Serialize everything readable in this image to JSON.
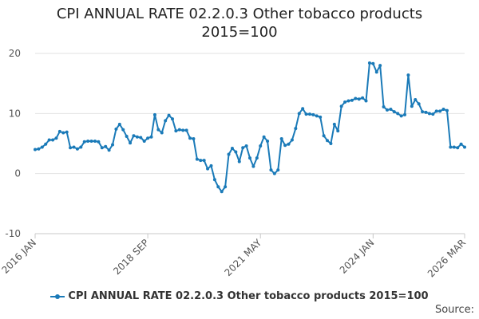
{
  "chart_data": {
    "type": "line",
    "title_line1": "CPI ANNUAL RATE 02.2.0.3 Other tobacco products",
    "title_line2": "2015=100",
    "xlabel": "",
    "ylabel": "",
    "ylim": [
      -10,
      20
    ],
    "yticks": [
      "20",
      "10",
      "0",
      "-10"
    ],
    "ytick_values": [
      20,
      10,
      0,
      -10
    ],
    "xtick_labels": [
      "2016 JAN",
      "2018 SEP",
      "2021 MAY",
      "2024 JAN",
      "2026 MAR"
    ],
    "xtick_indices": [
      0,
      32,
      64,
      96,
      122
    ],
    "grid": true,
    "legend_position": "bottom",
    "series": [
      {
        "name": "CPI ANNUAL RATE 02.2.0.3 Other tobacco products 2015=100",
        "color": "#1a7ab8",
        "values": [
          4.0,
          4.1,
          4.4,
          4.9,
          5.6,
          5.6,
          5.9,
          7.0,
          6.8,
          6.9,
          4.3,
          4.4,
          4.1,
          4.4,
          5.3,
          5.4,
          5.4,
          5.4,
          5.3,
          4.3,
          4.5,
          3.9,
          4.8,
          7.4,
          8.2,
          7.3,
          6.2,
          5.1,
          6.3,
          6.1,
          6.0,
          5.4,
          5.9,
          6.1,
          9.8,
          7.3,
          6.8,
          8.8,
          9.7,
          9.1,
          7.1,
          7.3,
          7.2,
          7.2,
          5.9,
          5.8,
          2.4,
          2.2,
          2.2,
          0.8,
          1.3,
          -1.0,
          -2.2,
          -3.0,
          -2.2,
          3.2,
          4.2,
          3.6,
          2.0,
          4.3,
          4.6,
          2.6,
          1.2,
          2.6,
          4.6,
          6.1,
          5.4,
          0.6,
          0.0,
          0.6,
          5.8,
          4.7,
          4.9,
          5.6,
          7.5,
          10.0,
          10.8,
          9.9,
          9.9,
          9.8,
          9.6,
          9.4,
          6.3,
          5.5,
          5.0,
          8.2,
          7.1,
          11.2,
          11.9,
          12.1,
          12.2,
          12.5,
          12.4,
          12.6,
          12.1,
          18.4,
          18.3,
          16.9,
          18.0,
          11.1,
          10.6,
          10.7,
          10.3,
          10.0,
          9.6,
          9.8,
          16.4,
          11.2,
          12.3,
          11.6,
          10.3,
          10.2,
          10.0,
          9.9,
          10.4,
          10.4,
          10.7,
          10.5,
          4.4,
          4.4,
          4.3,
          4.9,
          4.4
        ]
      }
    ]
  },
  "legend": {
    "label": "CPI ANNUAL RATE 02.2.0.3 Other tobacco products 2015=100"
  },
  "footer": {
    "source_label": "Source:"
  }
}
